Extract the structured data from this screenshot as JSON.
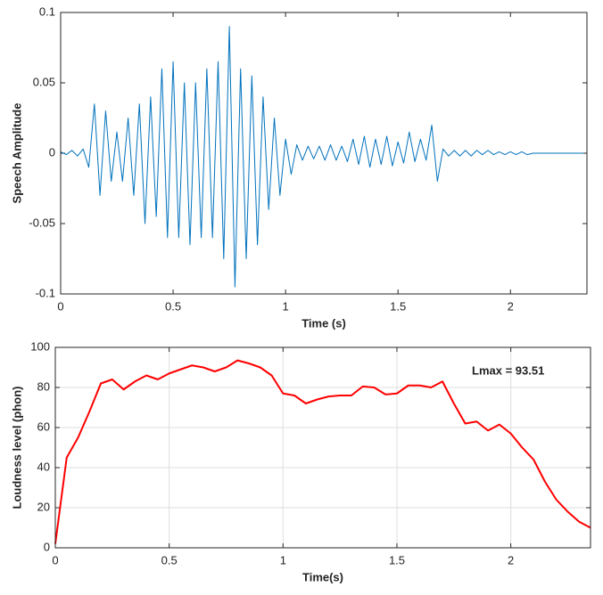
{
  "chart_data": [
    {
      "type": "line",
      "ylabel": "Speech Amplitude",
      "xlabel": "Time (s)",
      "xlim": [
        0,
        2.34
      ],
      "ylim": [
        -0.1,
        0.1
      ],
      "xticks": [
        0,
        0.5,
        1,
        1.5,
        2
      ],
      "yticks": [
        -0.1,
        -0.05,
        0,
        0.05,
        0.1
      ],
      "grid": false,
      "x": [
        0,
        0.025,
        0.05,
        0.075,
        0.1,
        0.125,
        0.15,
        0.175,
        0.2,
        0.225,
        0.25,
        0.275,
        0.3,
        0.325,
        0.35,
        0.375,
        0.4,
        0.425,
        0.45,
        0.475,
        0.5,
        0.525,
        0.55,
        0.575,
        0.6,
        0.625,
        0.65,
        0.675,
        0.7,
        0.725,
        0.75,
        0.775,
        0.8,
        0.825,
        0.85,
        0.875,
        0.9,
        0.925,
        0.95,
        0.975,
        1.0,
        1.025,
        1.05,
        1.075,
        1.1,
        1.125,
        1.15,
        1.175,
        1.2,
        1.225,
        1.25,
        1.275,
        1.3,
        1.325,
        1.35,
        1.375,
        1.4,
        1.425,
        1.45,
        1.475,
        1.5,
        1.525,
        1.55,
        1.575,
        1.6,
        1.625,
        1.65,
        1.675,
        1.7,
        1.725,
        1.75,
        1.775,
        1.8,
        1.825,
        1.85,
        1.875,
        1.9,
        1.925,
        1.95,
        1.975,
        2.0,
        2.025,
        2.05,
        2.075,
        2.1,
        2.125,
        2.15,
        2.175,
        2.2,
        2.225,
        2.25,
        2.275,
        2.3,
        2.325
      ],
      "series": [
        {
          "color": "#0072bd",
          "values": [
            0.001,
            -0.001,
            0.002,
            -0.002,
            0.003,
            -0.01,
            0.035,
            -0.03,
            0.03,
            -0.02,
            0.015,
            -0.02,
            0.025,
            -0.03,
            0.035,
            -0.05,
            0.04,
            -0.045,
            0.06,
            -0.06,
            0.065,
            -0.06,
            0.05,
            -0.065,
            0.05,
            -0.06,
            0.06,
            -0.06,
            0.065,
            -0.075,
            0.09,
            -0.095,
            0.06,
            -0.075,
            0.055,
            -0.065,
            0.04,
            -0.04,
            0.025,
            -0.03,
            0.01,
            -0.015,
            0.006,
            -0.005,
            0.005,
            -0.004,
            0.005,
            -0.005,
            0.006,
            -0.005,
            0.005,
            -0.006,
            0.01,
            -0.008,
            0.012,
            -0.01,
            0.01,
            -0.008,
            0.012,
            -0.009,
            0.008,
            -0.007,
            0.015,
            -0.006,
            0.01,
            -0.005,
            0.02,
            -0.02,
            0.003,
            -0.002,
            0.002,
            -0.002,
            0.002,
            -0.002,
            0.002,
            -0.001,
            0.002,
            -0.001,
            0.001,
            -0.001,
            0.001,
            -0.001,
            0.001,
            -0.001,
            0,
            0,
            0,
            0,
            0,
            0,
            0,
            0,
            0,
            0
          ]
        }
      ]
    },
    {
      "type": "line",
      "ylabel": "Loudness level (phon)",
      "xlabel": "Time(s)",
      "annotation": "Lmax = 93.51",
      "xlim": [
        0,
        2.35
      ],
      "ylim": [
        0,
        100
      ],
      "xticks": [
        0,
        0.5,
        1,
        1.5,
        2
      ],
      "yticks": [
        0,
        20,
        40,
        60,
        80,
        100
      ],
      "grid": true,
      "x": [
        0,
        0.05,
        0.1,
        0.15,
        0.2,
        0.25,
        0.3,
        0.35,
        0.4,
        0.45,
        0.5,
        0.55,
        0.6,
        0.65,
        0.7,
        0.75,
        0.8,
        0.85,
        0.9,
        0.95,
        1.0,
        1.05,
        1.1,
        1.15,
        1.2,
        1.25,
        1.3,
        1.35,
        1.4,
        1.45,
        1.5,
        1.55,
        1.6,
        1.65,
        1.7,
        1.75,
        1.8,
        1.85,
        1.9,
        1.95,
        2.0,
        2.05,
        2.1,
        2.15,
        2.2,
        2.25,
        2.3,
        2.35
      ],
      "series": [
        {
          "color": "#ff0000",
          "values": [
            2,
            45,
            55,
            68,
            82,
            84,
            79,
            83,
            86,
            84,
            87,
            89,
            91,
            90,
            88,
            90,
            93.5,
            92,
            90,
            86,
            77,
            76,
            72,
            74,
            75.5,
            76,
            76,
            80.5,
            80,
            76.5,
            77,
            81,
            81,
            80,
            83,
            72,
            62,
            63,
            58.5,
            61.5,
            57,
            50,
            44,
            33,
            24,
            18,
            13,
            10
          ]
        }
      ]
    }
  ]
}
